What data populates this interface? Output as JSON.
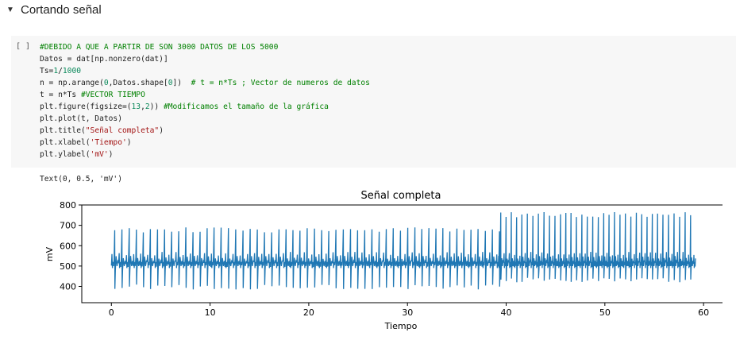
{
  "section": {
    "title": "Cortando señal",
    "caret_icon": "triangle-down"
  },
  "cell": {
    "run_indicator": "[ ]",
    "code_lines": [
      "#DEBIDO A QUE A PARTIR DE SON 3000 DATOS DE LOS 5000",
      "Datos = dat[np.nonzero(dat)]",
      "Ts=1/1000",
      "n = np.arange(0,Datos.shape[0])  # t = n*Ts ; Vector de numeros de datos",
      "t = n*Ts #VECTOR TIEMPO",
      "plt.figure(figsize=(13,2)) #Modificamos el tamaño de la gráfica",
      "plt.plot(t, Datos)",
      "plt.title(\"Señal completa\")",
      "plt.xlabel('Tiempo')",
      "plt.ylabel('mV')"
    ],
    "output_text": "Text(0, 0.5, 'mV')"
  },
  "colors": {
    "cell_background": "#f7f7f7",
    "comment": "#008000",
    "string": "#a31515",
    "number": "#09885a",
    "series": "#1f77b4"
  },
  "chart_data": {
    "type": "line",
    "title": "Señal completa",
    "xlabel": "Tiempo",
    "ylabel": "mV",
    "xlim": [
      -3,
      62
    ],
    "ylim": [
      320,
      800
    ],
    "xticks": [
      0,
      10,
      20,
      30,
      40,
      50,
      60
    ],
    "yticks": [
      400,
      500,
      600,
      700,
      800
    ],
    "grid": false,
    "series": [
      {
        "baseline": 510,
        "segments": [
          {
            "t_start": 0.0,
            "t_end": 39.2,
            "beat_interval": 0.73,
            "peak": 690,
            "trough": 385
          },
          {
            "t_start": 39.2,
            "t_end": 59.2,
            "beat_interval": 0.55,
            "peak": 765,
            "trough": 420
          }
        ]
      }
    ]
  }
}
